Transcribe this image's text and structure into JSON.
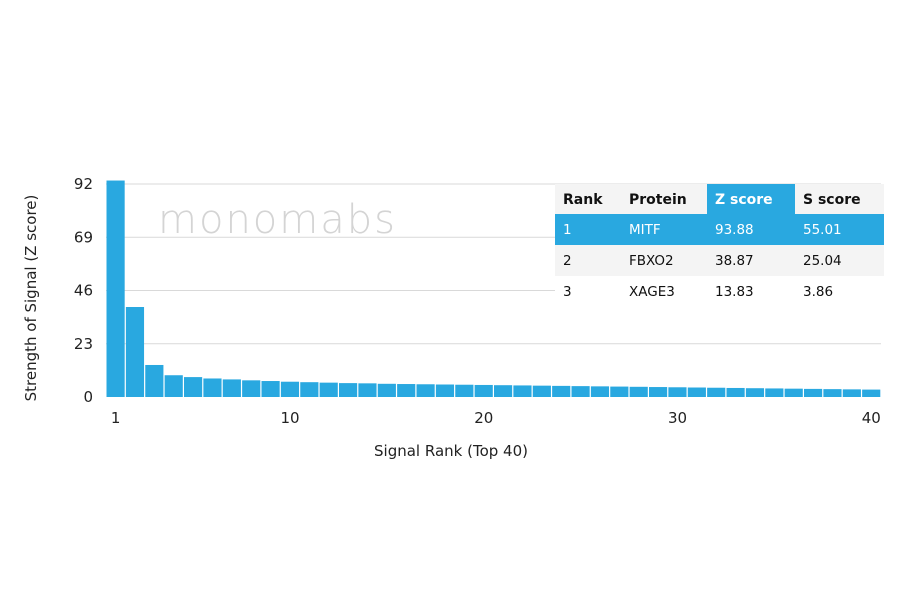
{
  "chart_data": {
    "type": "bar",
    "title": "",
    "xlabel": "Signal Rank (Top 40)",
    "ylabel": "Strength of Signal (Z score)",
    "ylim": [
      0,
      92
    ],
    "yticks": [
      0,
      23,
      46,
      69,
      92
    ],
    "xticks": [
      1,
      10,
      20,
      30,
      40
    ],
    "grid": "horizontal",
    "bar_color": "#29a8e0",
    "categories": [
      1,
      2,
      3,
      4,
      5,
      6,
      7,
      8,
      9,
      10,
      11,
      12,
      13,
      14,
      15,
      16,
      17,
      18,
      19,
      20,
      21,
      22,
      23,
      24,
      25,
      26,
      27,
      28,
      29,
      30,
      31,
      32,
      33,
      34,
      35,
      36,
      37,
      38,
      39,
      40
    ],
    "values": [
      93.88,
      38.87,
      13.83,
      9.4,
      8.6,
      8.0,
      7.6,
      7.2,
      6.9,
      6.6,
      6.4,
      6.2,
      6.0,
      5.9,
      5.7,
      5.6,
      5.5,
      5.4,
      5.3,
      5.2,
      5.1,
      5.0,
      4.9,
      4.8,
      4.7,
      4.6,
      4.5,
      4.4,
      4.3,
      4.2,
      4.1,
      4.0,
      3.9,
      3.8,
      3.7,
      3.6,
      3.5,
      3.4,
      3.3,
      3.2
    ]
  },
  "watermark": "monomabs",
  "table": {
    "headers": [
      "Rank",
      "Protein",
      "Z score",
      "S score"
    ],
    "highlight_color": "#29a8e0",
    "rows": [
      [
        "1",
        "MITF",
        "93.88",
        "55.01"
      ],
      [
        "2",
        "FBXO2",
        "38.87",
        "25.04"
      ],
      [
        "3",
        "XAGE3",
        "13.83",
        "3.86"
      ]
    ]
  }
}
